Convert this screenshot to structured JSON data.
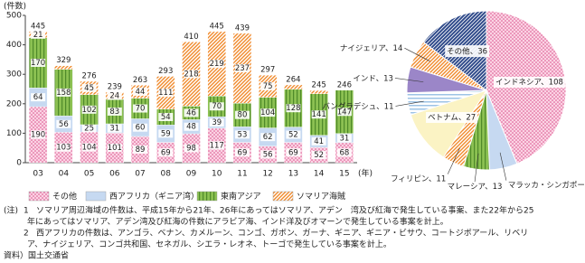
{
  "chart_data": [
    {
      "type": "stacked-bar",
      "y_label": "(件数)",
      "x_unit": "(年)",
      "categories": [
        "03",
        "04",
        "05",
        "06",
        "07",
        "08",
        "09",
        "10",
        "11",
        "12",
        "13",
        "14",
        "15"
      ],
      "series": [
        {
          "name": "その他",
          "color": "#f4a6c8",
          "pattern": "dots",
          "values": [
            190,
            103,
            104,
            101,
            89,
            69,
            98,
            117,
            69,
            56,
            69,
            52,
            68
          ]
        },
        {
          "name": "西アフリカ（ギニア湾）",
          "color": "#c6d9f1",
          "pattern": "solid",
          "values": [
            64,
            56,
            25,
            31,
            60,
            59,
            48,
            39,
            53,
            62,
            52,
            41,
            31
          ]
        },
        {
          "name": "東南アジア",
          "color": "#8cc152",
          "pattern": "vertical",
          "values": [
            170,
            158,
            102,
            83,
            70,
            54,
            46,
            70,
            80,
            104,
            128,
            141,
            147
          ]
        },
        {
          "name": "ソマリア海賊",
          "color": "#f08a2c",
          "pattern": "diagonal",
          "values": [
            21,
            12,
            45,
            24,
            44,
            111,
            218,
            219,
            237,
            75,
            15,
            11,
            0
          ]
        }
      ],
      "totals": [
        445,
        329,
        276,
        239,
        263,
        293,
        410,
        445,
        439,
        297,
        264,
        245,
        246
      ],
      "ylim": [
        0,
        500
      ],
      "yticks": [
        0,
        100,
        200,
        300,
        400,
        500
      ],
      "grid": false
    },
    {
      "type": "pie",
      "label_separator": "、",
      "categories": [
        "インドネシア",
        "マラッカ・シンガポール海峡",
        "マレーシア",
        "フィリピン",
        "ベトナム",
        "バングラデシュ",
        "インド",
        "ナイジェリア",
        "その他"
      ],
      "values": [
        108,
        14,
        13,
        11,
        27,
        11,
        13,
        14,
        36
      ],
      "colors": [
        "#f4a6c8",
        "#c6d9f1",
        "#8cc152",
        "#f08a2c",
        "#fbf3c4",
        "#9dc3e6",
        "#9b86c8",
        "#f08a2c",
        "#2f4a8a"
      ],
      "patterns": [
        "dots",
        "solid",
        "vertical",
        "diagonal",
        "solid",
        "horizontal",
        "solid",
        "diagonal",
        "diagonal-dark"
      ]
    }
  ],
  "notes_label": "(注)",
  "notes": [
    {
      "number": "1",
      "lines": [
        "ソマリア周辺海域の件数は、平成15年から21年、26年にあってはソマリア、アデン　湾及び紅海で発生している事案、また22年から25",
        "年にあってはソマリア、アデン湾及び紅海の件数にアラビア海、インド洋及びオマーンで発生している事案を計上。"
      ]
    },
    {
      "number": "2",
      "lines": [
        "西アフリカの件数は、アンゴラ、ベナン、カメルーン、コンゴ、ガボン、ガーナ、ギニア、ギニア・ビサウ、コートジボアール、リベリ",
        "ア、ナイジェリア、コンゴ共和国、セネガル、シエラ・レオネ、トーゴで発生している事案を計上。"
      ]
    }
  ],
  "source": "資料）国土交通省"
}
